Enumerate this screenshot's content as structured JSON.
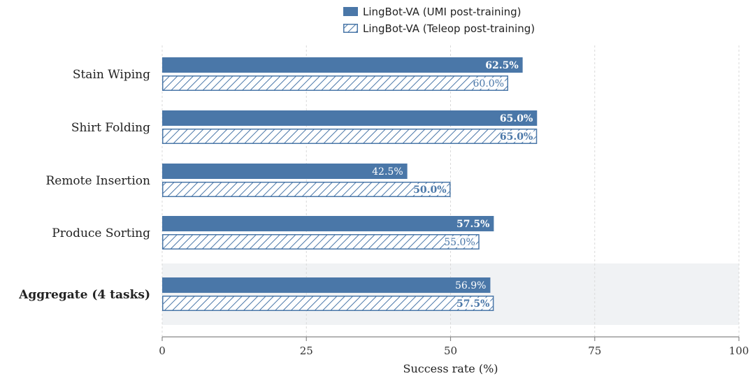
{
  "chart_data": {
    "type": "bar",
    "orientation": "horizontal",
    "categories": [
      "Stain Wiping",
      "Shirt Folding",
      "Remote Insertion",
      "Produce Sorting",
      "Aggregate (4 tasks)"
    ],
    "highlighted_category": "Aggregate (4 tasks)",
    "series": [
      {
        "name": "LingBot-VA (UMI post-training)",
        "style": "solid",
        "values": [
          62.5,
          65.0,
          42.5,
          57.5,
          56.9
        ],
        "labels": [
          "62.5%",
          "65.0%",
          "42.5%",
          "57.5%",
          "56.9%"
        ],
        "label_bold": [
          true,
          true,
          false,
          true,
          false
        ]
      },
      {
        "name": "LingBot-VA (Teleop post-training)",
        "style": "hatched",
        "values": [
          60.0,
          65.0,
          50.0,
          55.0,
          57.5
        ],
        "labels": [
          "60.0%",
          "65.0%",
          "50.0%",
          "55.0%",
          "57.5%"
        ],
        "label_bold": [
          false,
          true,
          true,
          false,
          true
        ]
      }
    ],
    "xlabel": "Success rate (%)",
    "ylabel": "",
    "xlim": [
      0,
      100
    ],
    "xticks": [
      0,
      25,
      50,
      75,
      100
    ],
    "grid": "vertical dashed",
    "legend_position": "top-center",
    "colors": {
      "bar": "#4a77a8",
      "hatch_background": "#ffffff",
      "grid": "#d9d9d9",
      "highlight_band": "#f0f2f4",
      "axis": "#888888"
    }
  }
}
